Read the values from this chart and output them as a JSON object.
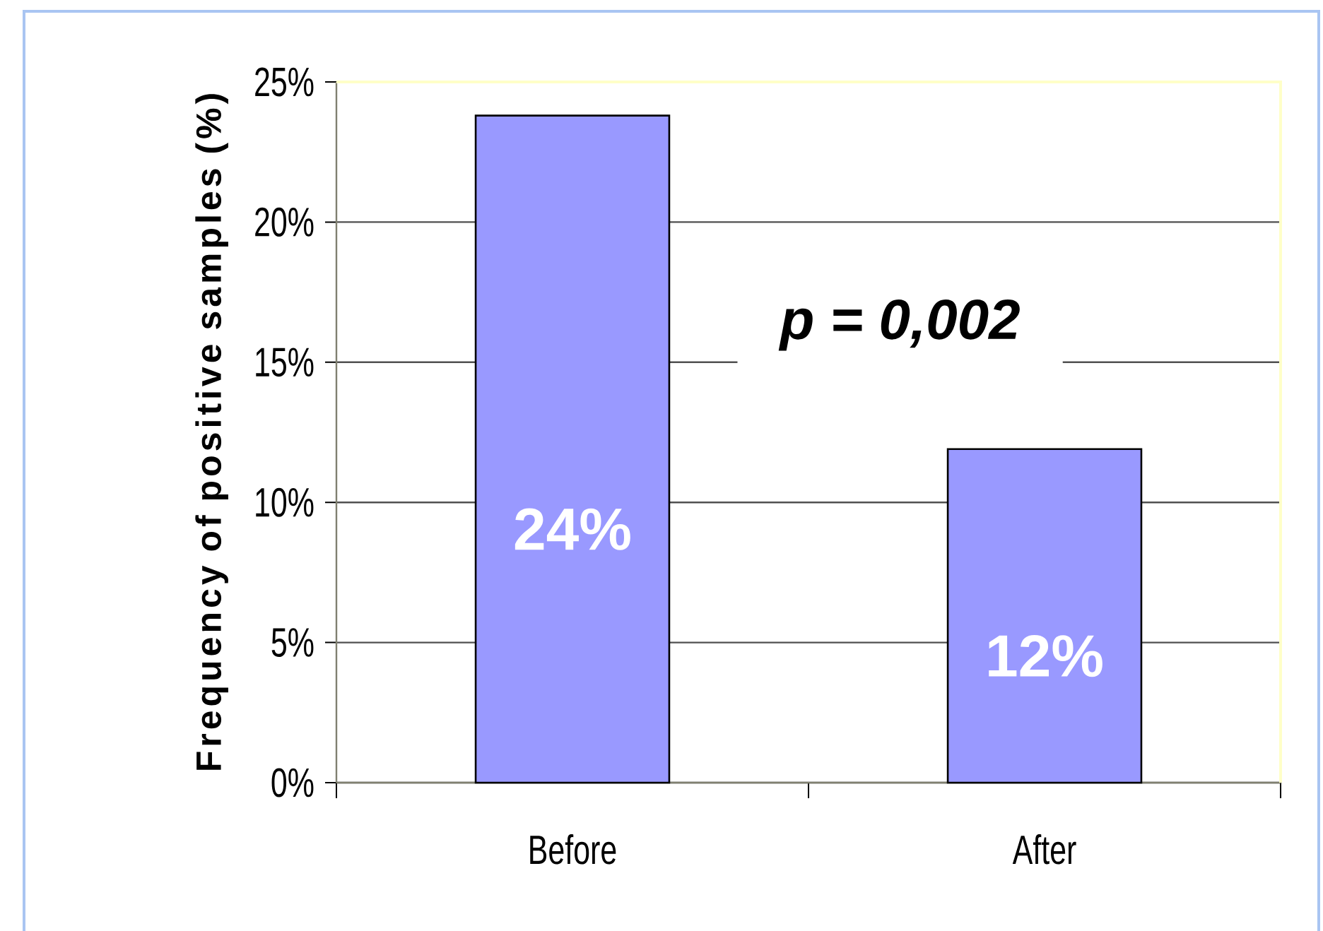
{
  "chart_data": {
    "type": "bar",
    "ylabel": "Frequency of positive samples (%)",
    "categories": [
      "Before",
      "After"
    ],
    "values": [
      23.8,
      11.9
    ],
    "color": "#9999ff",
    "value_labels": [
      "24%",
      "12%"
    ],
    "ylim": [
      0,
      25
    ],
    "yticks": [
      {
        "value": 0,
        "label": "0%"
      },
      {
        "value": 5,
        "label": "5%"
      },
      {
        "value": 10,
        "label": "10%"
      },
      {
        "value": 15,
        "label": "15%"
      },
      {
        "value": 20,
        "label": "20%"
      },
      {
        "value": 25,
        "label": "25%"
      }
    ],
    "grid": "y",
    "annotations": [
      "p = 0,002"
    ]
  }
}
